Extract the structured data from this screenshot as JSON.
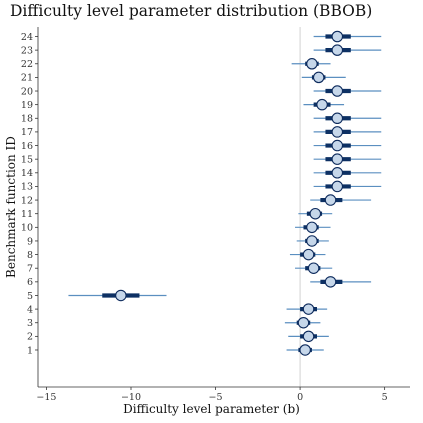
{
  "chart_data": {
    "type": "forest",
    "title": "Difficulty level parameter distribution (BBOB)",
    "xlabel": "Difficulty level parameter (b)",
    "ylabel": "Benchmark function ID",
    "xlim": [
      -15.5,
      6.5
    ],
    "xticks": [
      -15,
      -10,
      -5,
      0,
      5
    ],
    "reference_line_x": 0,
    "grid": false,
    "colors": {
      "interval": "#5b8fc0",
      "inner_interval": "#0d3063",
      "point_fill": "#c6d7ea",
      "point_stroke": "#0d2a5c",
      "reference_line": "#d9d9d9"
    },
    "functions": [
      {
        "id": "1",
        "median": 0.3,
        "inner": [
          -0.1,
          0.7
        ],
        "outer": [
          -0.8,
          1.4
        ]
      },
      {
        "id": "2",
        "median": 0.5,
        "inner": [
          0.0,
          1.0
        ],
        "outer": [
          -0.7,
          1.7
        ]
      },
      {
        "id": "3",
        "median": 0.2,
        "inner": [
          -0.2,
          0.6
        ],
        "outer": [
          -0.9,
          1.2
        ]
      },
      {
        "id": "4",
        "median": 0.5,
        "inner": [
          0.0,
          1.0
        ],
        "outer": [
          -0.8,
          1.6
        ]
      },
      {
        "id": "5",
        "median": -10.6,
        "inner": [
          -11.7,
          -9.5
        ],
        "outer": [
          -13.7,
          -7.9
        ]
      },
      {
        "id": "6",
        "median": 1.8,
        "inner": [
          1.2,
          2.5
        ],
        "outer": [
          0.6,
          4.2
        ]
      },
      {
        "id": "7",
        "median": 0.8,
        "inner": [
          0.3,
          1.2
        ],
        "outer": [
          -0.3,
          1.9
        ]
      },
      {
        "id": "8",
        "median": 0.5,
        "inner": [
          0.0,
          0.9
        ],
        "outer": [
          -0.6,
          1.5
        ]
      },
      {
        "id": "9",
        "median": 0.7,
        "inner": [
          0.3,
          1.1
        ],
        "outer": [
          -0.2,
          1.7
        ]
      },
      {
        "id": "10",
        "median": 0.7,
        "inner": [
          0.2,
          1.1
        ],
        "outer": [
          -0.3,
          1.8
        ]
      },
      {
        "id": "11",
        "median": 0.9,
        "inner": [
          0.4,
          1.3
        ],
        "outer": [
          -0.1,
          1.9
        ]
      },
      {
        "id": "12",
        "median": 1.8,
        "inner": [
          1.2,
          2.5
        ],
        "outer": [
          0.6,
          4.2
        ]
      },
      {
        "id": "13",
        "median": 2.2,
        "inner": [
          1.5,
          3.0
        ],
        "outer": [
          0.8,
          4.8
        ]
      },
      {
        "id": "14",
        "median": 2.2,
        "inner": [
          1.5,
          3.0
        ],
        "outer": [
          0.8,
          4.8
        ]
      },
      {
        "id": "15",
        "median": 2.2,
        "inner": [
          1.5,
          3.0
        ],
        "outer": [
          0.8,
          4.8
        ]
      },
      {
        "id": "16",
        "median": 2.2,
        "inner": [
          1.5,
          3.0
        ],
        "outer": [
          0.8,
          4.8
        ]
      },
      {
        "id": "17",
        "median": 2.2,
        "inner": [
          1.5,
          3.0
        ],
        "outer": [
          0.8,
          4.8
        ]
      },
      {
        "id": "18",
        "median": 2.2,
        "inner": [
          1.5,
          3.0
        ],
        "outer": [
          0.8,
          4.8
        ]
      },
      {
        "id": "19",
        "median": 1.3,
        "inner": [
          0.8,
          1.8
        ],
        "outer": [
          0.2,
          2.6
        ]
      },
      {
        "id": "20",
        "median": 2.2,
        "inner": [
          1.5,
          3.0
        ],
        "outer": [
          0.8,
          4.8
        ]
      },
      {
        "id": "21",
        "median": 1.1,
        "inner": [
          0.7,
          1.5
        ],
        "outer": [
          0.1,
          2.7
        ]
      },
      {
        "id": "22",
        "median": 0.7,
        "inner": [
          0.3,
          1.1
        ],
        "outer": [
          -0.5,
          1.8
        ]
      },
      {
        "id": "23",
        "median": 2.2,
        "inner": [
          1.5,
          3.0
        ],
        "outer": [
          0.8,
          4.8
        ]
      },
      {
        "id": "24",
        "median": 2.2,
        "inner": [
          1.5,
          3.0
        ],
        "outer": [
          0.8,
          4.8
        ]
      }
    ]
  }
}
